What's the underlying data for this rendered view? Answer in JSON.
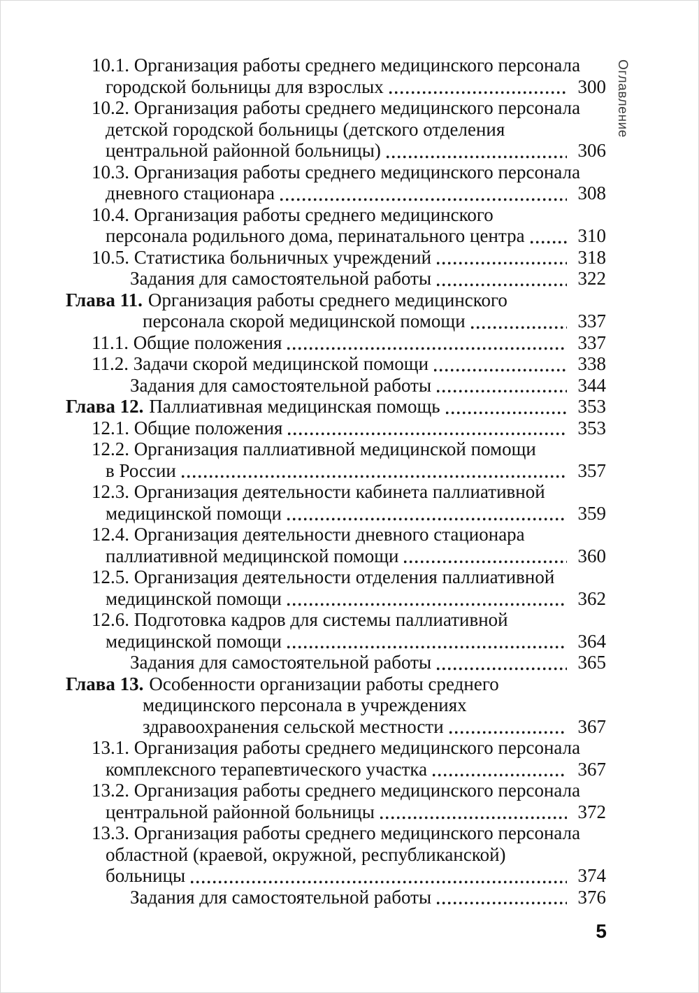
{
  "page": {
    "rotated_label": "Оглавление",
    "folio": "5",
    "text_color": "#121212",
    "sidebar_color": "#3b3b3b",
    "background": "#ffffff"
  },
  "toc": {
    "lines": [
      {
        "style": "section",
        "text": "10.1. Организация работы среднего медицинского персонала"
      },
      {
        "style": "section-cont",
        "text": "городской больницы для взрослых",
        "page": "300"
      },
      {
        "style": "section",
        "text": "10.2. Организация работы среднего медицинского персонала"
      },
      {
        "style": "section-cont",
        "text": "детской городской больницы (детского отделения"
      },
      {
        "style": "section-cont",
        "text": "центральной районной больницы)",
        "page": "306"
      },
      {
        "style": "section",
        "text": "10.3. Организация работы среднего медицинского персонала"
      },
      {
        "style": "section-cont",
        "text": "дневного стационара",
        "page": "308"
      },
      {
        "style": "section",
        "text": "10.4. Организация работы среднего медицинского"
      },
      {
        "style": "section-cont",
        "text": "персонала родильного дома, перинатального центра",
        "page": "310"
      },
      {
        "style": "section",
        "text": "10.5. Статистика больничных учреждений",
        "page": "318"
      },
      {
        "style": "tasks",
        "text": "Задания для самостоятельной работы",
        "page": "322"
      },
      {
        "style": "chapter",
        "bold": "Глава 11.",
        "text": "Организация работы среднего медицинского"
      },
      {
        "style": "chapter-cont",
        "text": "персонала скорой медицинской помощи",
        "page": "337"
      },
      {
        "style": "section",
        "text": "11.1. Общие положения",
        "page": "337"
      },
      {
        "style": "section",
        "text": "11.2. Задачи скорой медицинской помощи",
        "page": "338"
      },
      {
        "style": "tasks",
        "text": "Задания для самостоятельной работы",
        "page": "344"
      },
      {
        "style": "chapter",
        "bold": "Глава 12.",
        "text": "Паллиативная медицинская помощь",
        "page": "353"
      },
      {
        "style": "section",
        "text": "12.1. Общие положения",
        "page": "353"
      },
      {
        "style": "section",
        "text": "12.2. Организация паллиативной медицинской помощи"
      },
      {
        "style": "section-cont",
        "text": "в России",
        "page": "357"
      },
      {
        "style": "section",
        "text": "12.3. Организация деятельности кабинета паллиативной"
      },
      {
        "style": "section-cont",
        "text": "медицинской помощи",
        "page": "359"
      },
      {
        "style": "section",
        "text": "12.4. Организация деятельности дневного стационара"
      },
      {
        "style": "section-cont",
        "text": "паллиативной медицинской помощи",
        "page": "360"
      },
      {
        "style": "section",
        "text": "12.5. Организация деятельности отделения паллиативной"
      },
      {
        "style": "section-cont",
        "text": "медицинской помощи",
        "page": "362"
      },
      {
        "style": "section",
        "text": "12.6. Подготовка кадров для системы паллиативной"
      },
      {
        "style": "section-cont",
        "text": "медицинской помощи",
        "page": "364"
      },
      {
        "style": "tasks",
        "text": "Задания для самостоятельной работы",
        "page": "365"
      },
      {
        "style": "chapter",
        "bold": "Глава 13.",
        "text": "Особенности организации работы среднего"
      },
      {
        "style": "chapter-cont",
        "text": "медицинского персонала в учреждениях"
      },
      {
        "style": "chapter-cont",
        "text": "здравоохранения сельской местности",
        "page": "367"
      },
      {
        "style": "section",
        "text": "13.1. Организация работы среднего медицинского персонала"
      },
      {
        "style": "section-cont",
        "text": "комплексного терапевтического участка",
        "page": "367"
      },
      {
        "style": "section",
        "text": "13.2. Организация работы среднего медицинского персонала"
      },
      {
        "style": "section-cont",
        "text": "центральной районной больницы",
        "page": "372"
      },
      {
        "style": "section",
        "text": "13.3. Организация работы среднего медицинского персонала"
      },
      {
        "style": "section-cont",
        "text": "областной (краевой, окружной, республиканской)"
      },
      {
        "style": "section-cont",
        "text": "больницы",
        "page": "374"
      },
      {
        "style": "tasks",
        "text": "Задания для самостоятельной работы",
        "page": "376"
      }
    ]
  }
}
